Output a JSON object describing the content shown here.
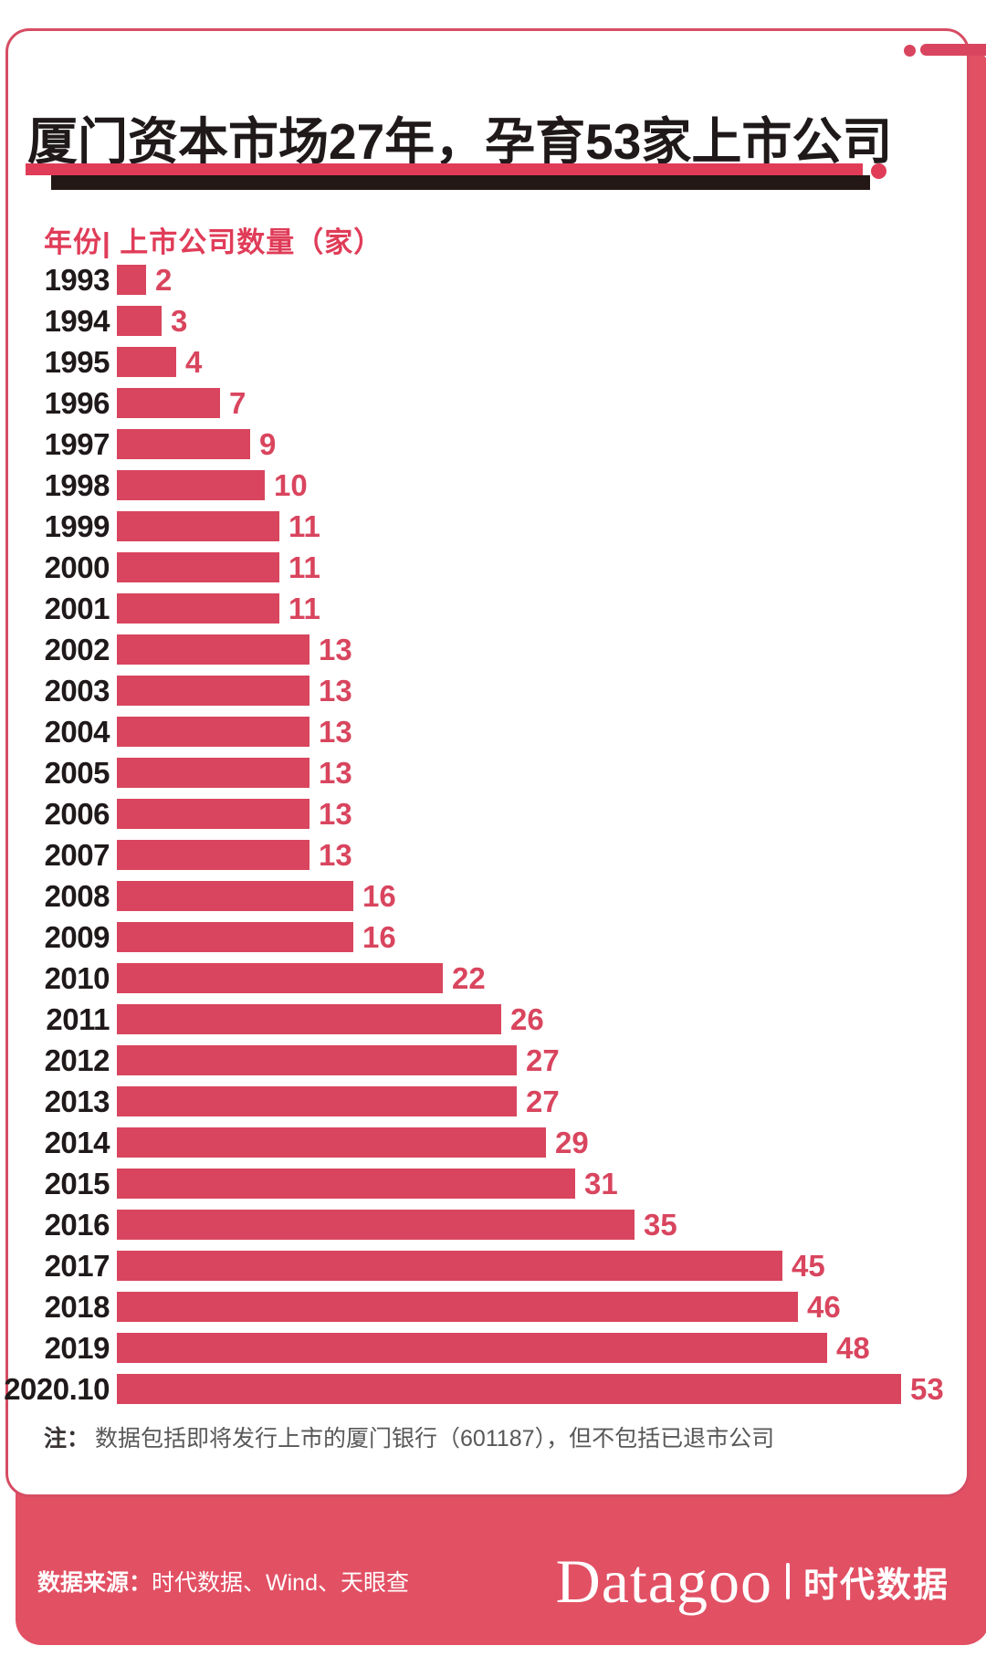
{
  "header": {
    "title": "厦门资本市场27年，孕育53家上市公司"
  },
  "chart": {
    "legend": "年份| 上市公司数量（家）"
  },
  "chart_data": {
    "type": "bar",
    "orientation": "horizontal",
    "title": "厦门资本市场27年，孕育53家上市公司",
    "series_label": "年份| 上市公司数量（家）",
    "unit": "家",
    "categories": [
      "1993",
      "1994",
      "1995",
      "1996",
      "1997",
      "1998",
      "1999",
      "2000",
      "2001",
      "2002",
      "2003",
      "2004",
      "2005",
      "2006",
      "2007",
      "2008",
      "2009",
      "2010",
      "2011",
      "2012",
      "2013",
      "2014",
      "2015",
      "2016",
      "2017",
      "2018",
      "2019",
      "2020.10"
    ],
    "values": [
      2,
      3,
      4,
      7,
      9,
      10,
      11,
      11,
      11,
      13,
      13,
      13,
      13,
      13,
      13,
      16,
      16,
      22,
      26,
      27,
      27,
      29,
      31,
      35,
      45,
      46,
      48,
      53
    ],
    "value_range": [
      0,
      53
    ],
    "data_labels": true,
    "grid": false,
    "bar_color": "#d9455e"
  },
  "note": {
    "prefix": "注：",
    "text": "数据包括即将发行上市的厦门银行（601187），但不包括已退市公司"
  },
  "footer": {
    "source_prefix": "数据来源：",
    "source_names": "时代数据、Wind、天眼查",
    "logo": {
      "wordmark": "Datagoo",
      "divider": "|",
      "cn": "时代数据"
    }
  },
  "colors": {
    "bar": "#d9455e",
    "accent": "#e03c58",
    "backdrop": "#e25064",
    "ink": "#1f191a",
    "underline": "#231815",
    "gray": "#595757",
    "border": "#d64d63"
  }
}
